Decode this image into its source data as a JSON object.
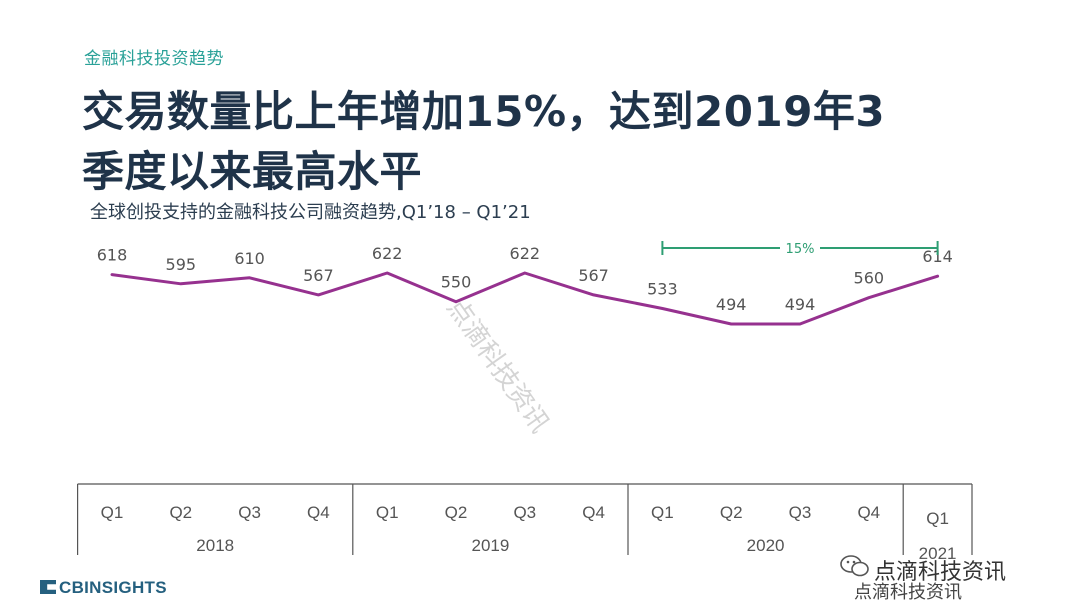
{
  "header": {
    "eyebrow": "金融科技投资趋势",
    "headline_line1": "交易数量比上年增加15%，达到2019年3",
    "headline_line2": "季度以来最高水平",
    "subtitle": "全球创投支持的金融科技公司融资趋势,Q1’18 – Q1’21"
  },
  "chart_data": {
    "type": "line",
    "title": "全球创投支持的金融科技公司融资趋势,Q1’18 – Q1’21",
    "categories": [
      "Q1",
      "Q2",
      "Q3",
      "Q4",
      "Q1",
      "Q2",
      "Q3",
      "Q4",
      "Q1",
      "Q2",
      "Q3",
      "Q4",
      "Q1"
    ],
    "years": [
      {
        "label": "2018",
        "quarters": 4
      },
      {
        "label": "2019",
        "quarters": 4
      },
      {
        "label": "2020",
        "quarters": 4
      },
      {
        "label": "2021",
        "quarters": 1
      }
    ],
    "series": [
      {
        "values": [
          618,
          595,
          610,
          567,
          622,
          550,
          622,
          567,
          533,
          494,
          494,
          560,
          614
        ]
      }
    ],
    "annotation": {
      "label": "15%",
      "from_index": 8,
      "to_index": 12
    },
    "colors": {
      "line": "#96318f",
      "annotation": "#2e9e73",
      "axis": "#555555"
    },
    "grid": false,
    "legend": "none"
  },
  "watermark": "点滴科技资讯",
  "footer": {
    "logo": "CBINSIGHTS",
    "wechat_name": "点滴科技资讯",
    "wechat_name_secondary": "点滴科技资讯"
  }
}
